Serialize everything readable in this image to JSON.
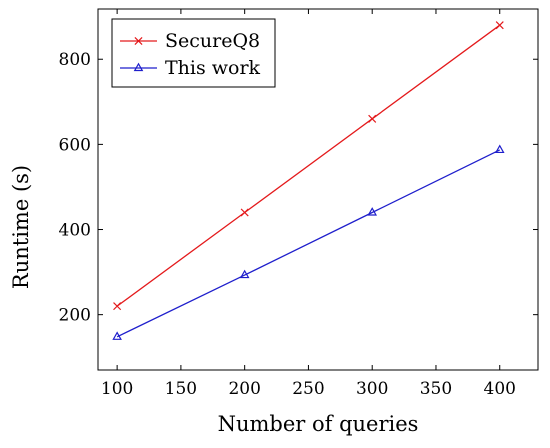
{
  "chart_data": {
    "type": "line",
    "title": "",
    "xlabel": "Number of queries",
    "ylabel": "Runtime (s)",
    "xlim": [
      85,
      430
    ],
    "ylim": [
      70,
      918
    ],
    "xticks": [
      100,
      150,
      200,
      250,
      300,
      350,
      400
    ],
    "yticks": [
      200,
      400,
      600,
      800
    ],
    "grid": false,
    "legend_position": "top-left",
    "series": [
      {
        "name": "SecureQ8",
        "color": "#e41a1c",
        "marker": "x",
        "x": [
          100,
          200,
          300,
          400
        ],
        "y": [
          220,
          440,
          660,
          880
        ]
      },
      {
        "name": "This work",
        "color": "#1f1fcc",
        "marker": "triangle",
        "x": [
          100,
          200,
          300,
          400
        ],
        "y": [
          148,
          293,
          440,
          587
        ]
      }
    ]
  }
}
